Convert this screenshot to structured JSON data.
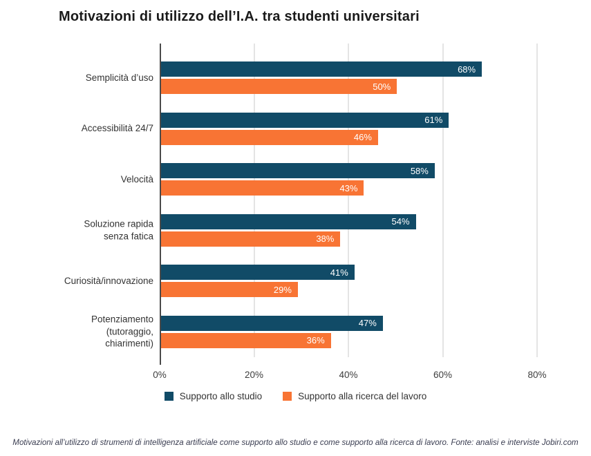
{
  "title": "Motivazioni di utilizzo dell’I.A. tra studenti universitari",
  "footer": "Motivazioni all’utilizzo di strumenti di intelligenza artificiale come supporto allo studio e come supporto alla ricerca di lavoro. Fonte: analisi e interviste Jobiri.com",
  "chart_data": {
    "type": "bar",
    "orientation": "horizontal",
    "title": "Motivazioni di utilizzo dell’I.A. tra studenti universitari",
    "categories": [
      "Semplicità d’uso",
      "Accessibilità 24/7",
      "Velocità",
      "Soluzione rapida\nsenza fatica",
      "Curiosità/innovazione",
      "Potenziamento\n(tutoraggio,\nchiarimenti)"
    ],
    "series": [
      {
        "name": "Supporto allo studio",
        "color": "#114b67",
        "values": [
          68,
          61,
          58,
          54,
          41,
          47
        ]
      },
      {
        "name": "Supporto alla ricerca del lavoro",
        "color": "#f87434",
        "values": [
          50,
          46,
          43,
          38,
          29,
          36
        ]
      }
    ],
    "value_label_suffix": "%",
    "x_tick_labels": [
      "0%",
      "20%",
      "40%",
      "60%",
      "80%"
    ],
    "x_tick_values": [
      0,
      20,
      40,
      60,
      80
    ],
    "xlim": [
      0,
      80
    ],
    "grid": true,
    "legend_position": "bottom",
    "colors": {
      "background": "#ffffff",
      "gridline": "#e4e4e4",
      "axis": "#4a4a4a",
      "bar_value_text": "#ffffff",
      "category_text": "#333333",
      "footer_text": "#3a3d51"
    }
  }
}
